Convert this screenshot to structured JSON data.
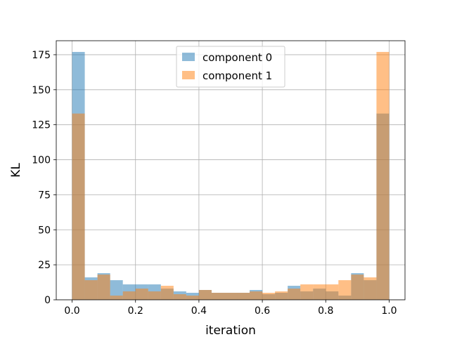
{
  "chart_data": {
    "type": "bar",
    "histogram": true,
    "xlabel": "iteration",
    "ylabel": "KL",
    "xlim": [
      -0.05,
      1.05
    ],
    "ylim": [
      0,
      185
    ],
    "xticks": [
      "0.0",
      "0.2",
      "0.4",
      "0.6",
      "0.8",
      "1.0"
    ],
    "yticks": [
      "0",
      "25",
      "50",
      "75",
      "100",
      "125",
      "150",
      "175"
    ],
    "grid": true,
    "legend_position": "upper-center",
    "bin_edges": [
      0.0,
      0.04,
      0.08,
      0.12,
      0.16,
      0.2,
      0.24,
      0.28,
      0.32,
      0.36,
      0.4,
      0.44,
      0.48,
      0.52,
      0.56,
      0.6,
      0.64,
      0.68,
      0.72,
      0.76,
      0.8,
      0.84,
      0.88,
      0.92,
      0.96,
      1.0
    ],
    "series": [
      {
        "name": "component 0",
        "color": "#1f77b4",
        "alpha": 0.5,
        "values": [
          177,
          16,
          19,
          14,
          11,
          11,
          11,
          8,
          6,
          5,
          7,
          5,
          5,
          5,
          7,
          4,
          5,
          10,
          6,
          8,
          6,
          3,
          19,
          14,
          133
        ]
      },
      {
        "name": "component 1",
        "color": "#ff7f0e",
        "alpha": 0.5,
        "values": [
          133,
          14,
          18,
          3,
          6,
          8,
          6,
          10,
          4,
          3,
          7,
          5,
          5,
          5,
          6,
          5,
          6,
          8,
          11,
          11,
          11,
          14,
          18,
          16,
          177
        ]
      }
    ]
  }
}
